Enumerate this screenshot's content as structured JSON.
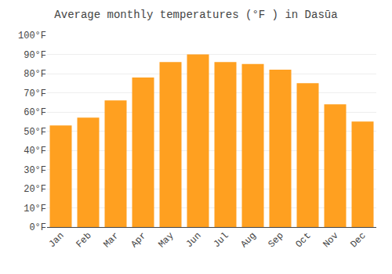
{
  "chart_data": {
    "type": "bar",
    "title": "Average monthly temperatures (°F ) in Dasūa",
    "categories": [
      "Jan",
      "Feb",
      "Mar",
      "Apr",
      "May",
      "Jun",
      "Jul",
      "Aug",
      "Sep",
      "Oct",
      "Nov",
      "Dec"
    ],
    "values": [
      53,
      57,
      66,
      78,
      86,
      90,
      86,
      85,
      82,
      75,
      64,
      55
    ],
    "color": "#FFA020",
    "ylim": [
      0,
      100
    ],
    "yticks": [
      {
        "value": 0,
        "label": "0°F"
      },
      {
        "value": 10,
        "label": "10°F"
      },
      {
        "value": 20,
        "label": "20°F"
      },
      {
        "value": 30,
        "label": "30°F"
      },
      {
        "value": 40,
        "label": "40°F"
      },
      {
        "value": 50,
        "label": "50°F"
      },
      {
        "value": 60,
        "label": "60°F"
      },
      {
        "value": 70,
        "label": "70°F"
      },
      {
        "value": 80,
        "label": "80°F"
      },
      {
        "value": 90,
        "label": "90°F"
      },
      {
        "value": 100,
        "label": "100°F"
      }
    ],
    "grid": true
  }
}
